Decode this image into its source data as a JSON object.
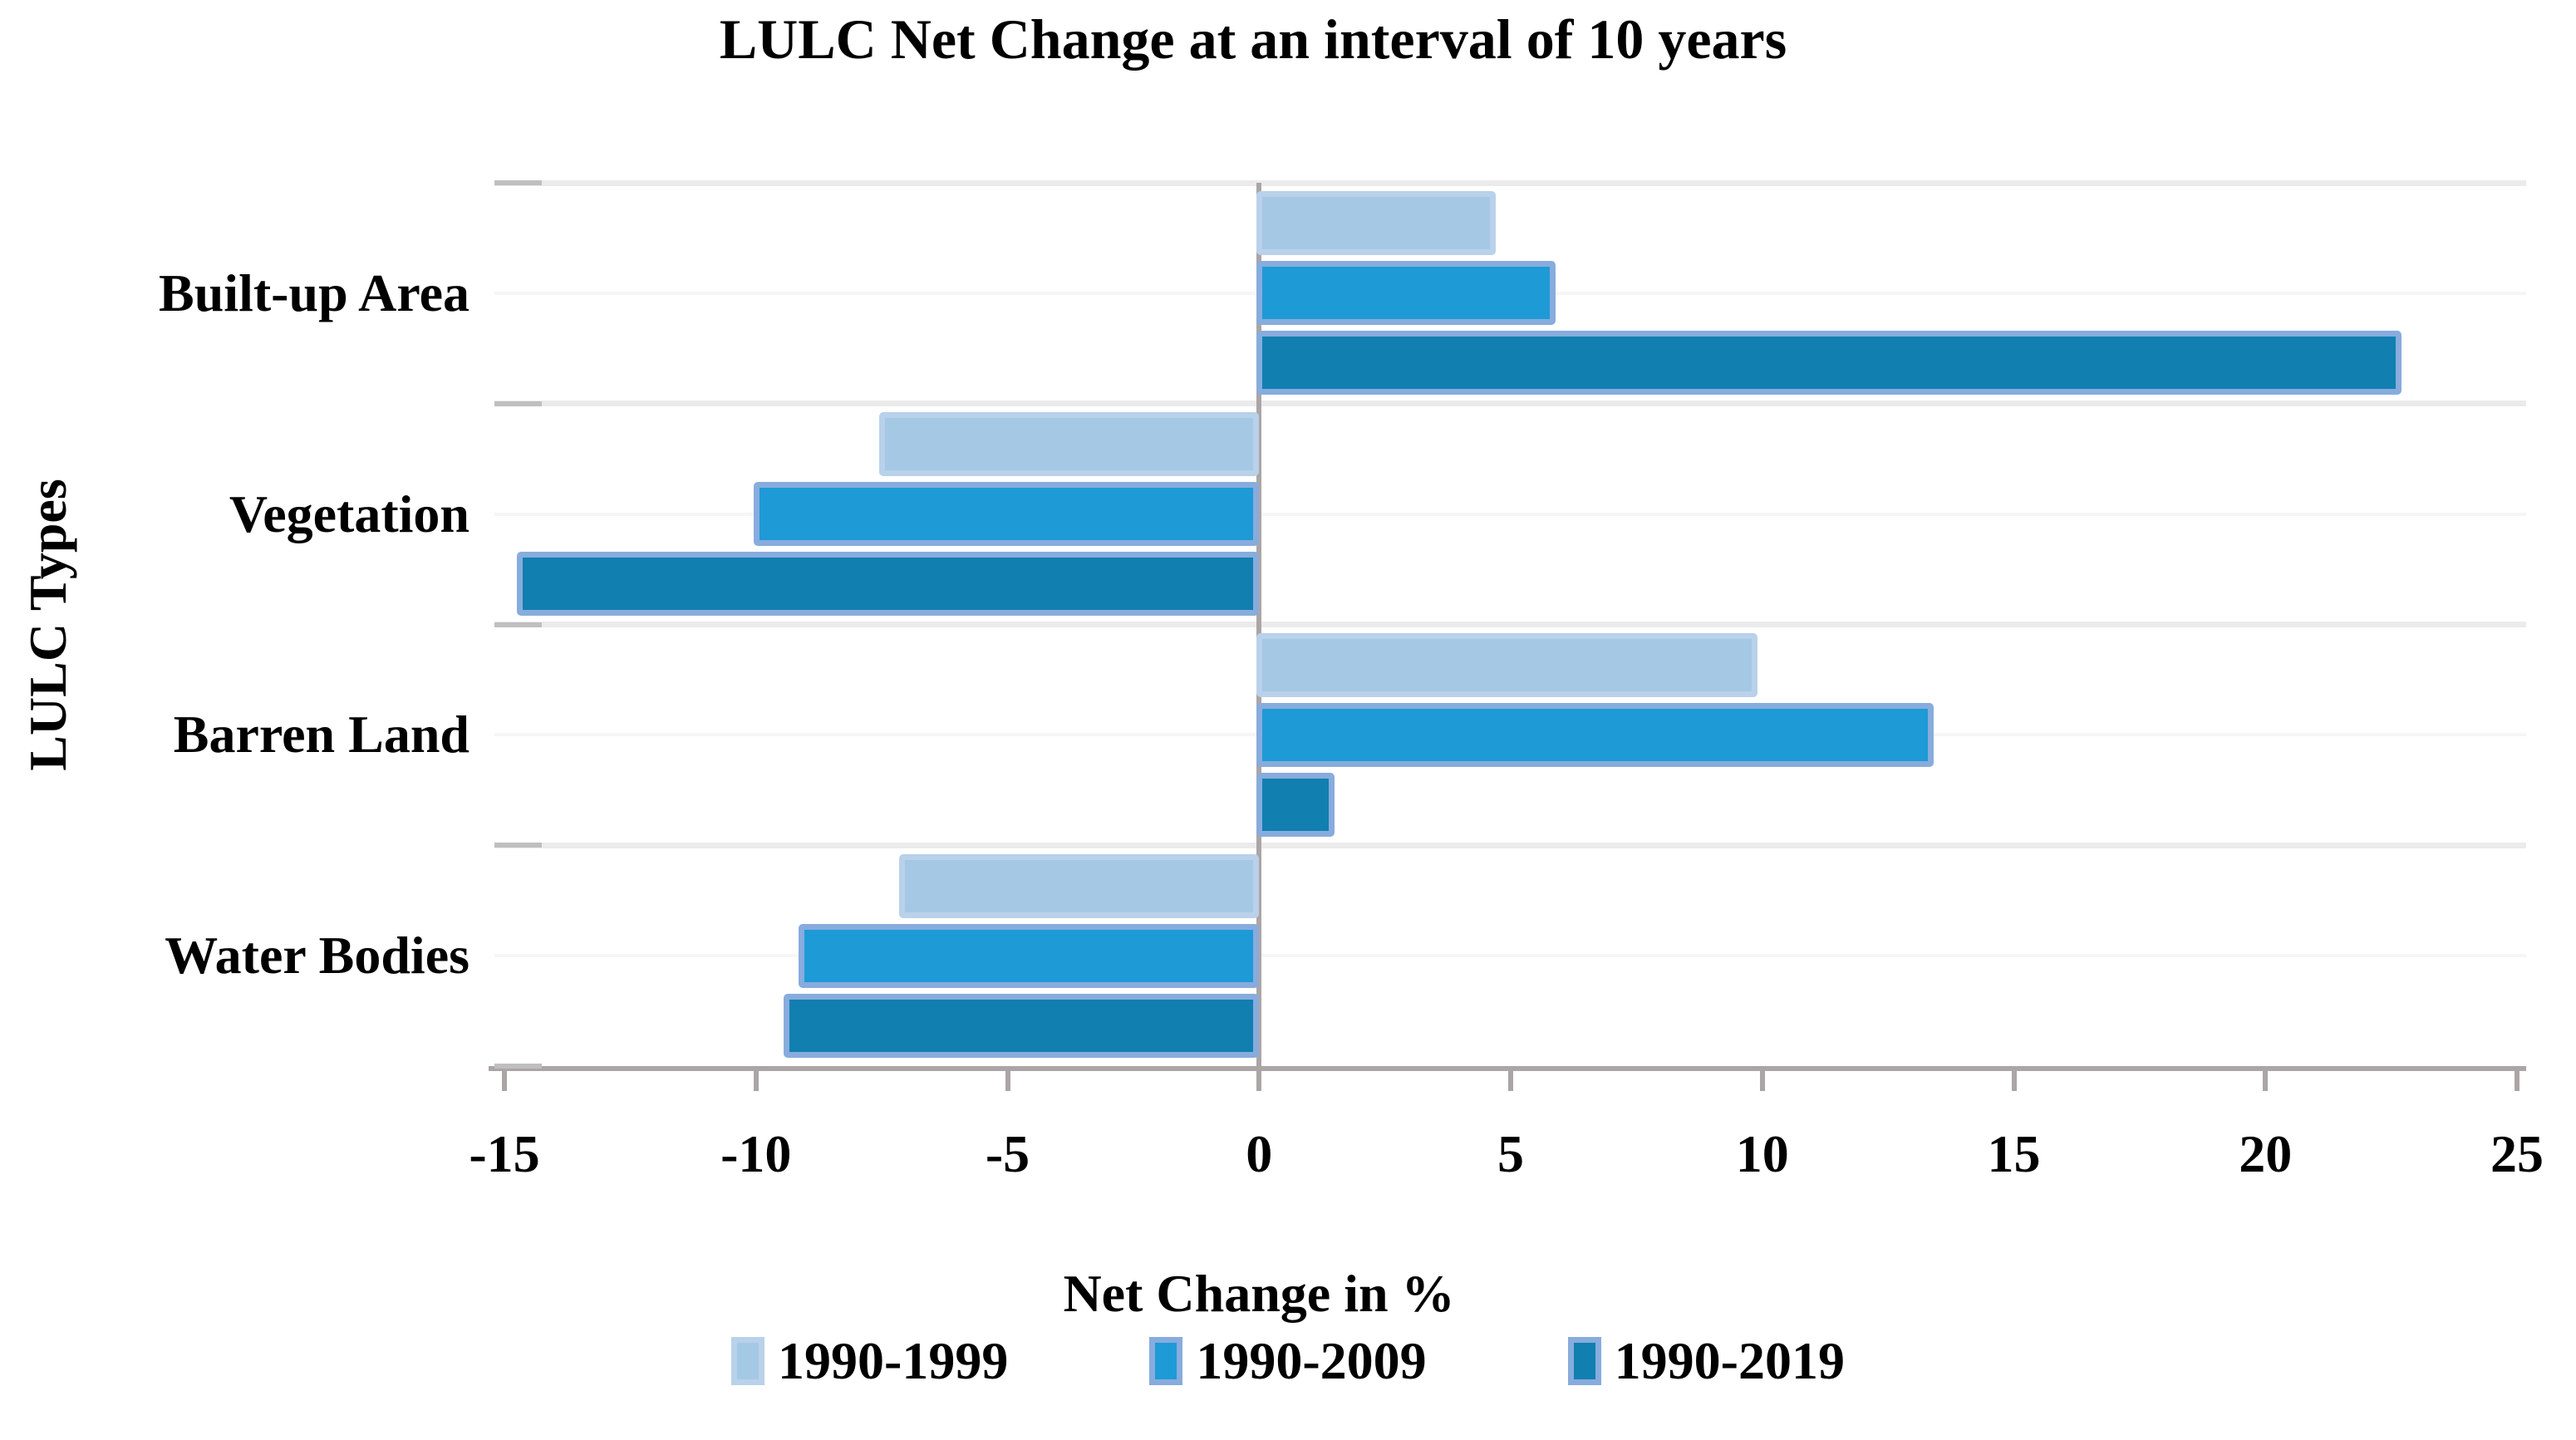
{
  "page": {
    "background": "#FFFFFF"
  },
  "chart_data": {
    "type": "bar",
    "orientation": "horizontal",
    "title": "LULC Net Change at an interval of 10 years",
    "xlabel": "Net Change in %",
    "ylabel": "LULC Types",
    "categories": [
      "Built-up Area",
      "Vegetation",
      "Barren Land",
      "Water Bodies"
    ],
    "series": [
      {
        "name": "1990-1999",
        "values": [
          4.7,
          -7.5,
          9.9,
          -7.1
        ],
        "fill": "#A5C8E5",
        "border": "#B9D1EA"
      },
      {
        "name": "1990-2009",
        "values": [
          5.9,
          -10.0,
          13.4,
          -9.1
        ],
        "fill": "#1E9AD6",
        "border": "#87ACDD"
      },
      {
        "name": "1990-2019",
        "values": [
          22.7,
          -14.7,
          1.5,
          -9.4
        ],
        "fill": "#117FB0",
        "border": "#87ACDD"
      }
    ],
    "xlim": [
      -15,
      25
    ],
    "xticks": [
      -15,
      -10,
      -5,
      0,
      5,
      10,
      15,
      20,
      25
    ],
    "grid": "light horizontal lines at category boundaries and midpoints",
    "legend_position": "bottom",
    "colors": {
      "axis": "#ABA5A5",
      "boundary_gridline": "#EBEBEB",
      "minor_gridline": "#F6F6F6",
      "category_tick": "#BFBFBF",
      "text": "#000000",
      "background": "#FFFFFF"
    }
  }
}
